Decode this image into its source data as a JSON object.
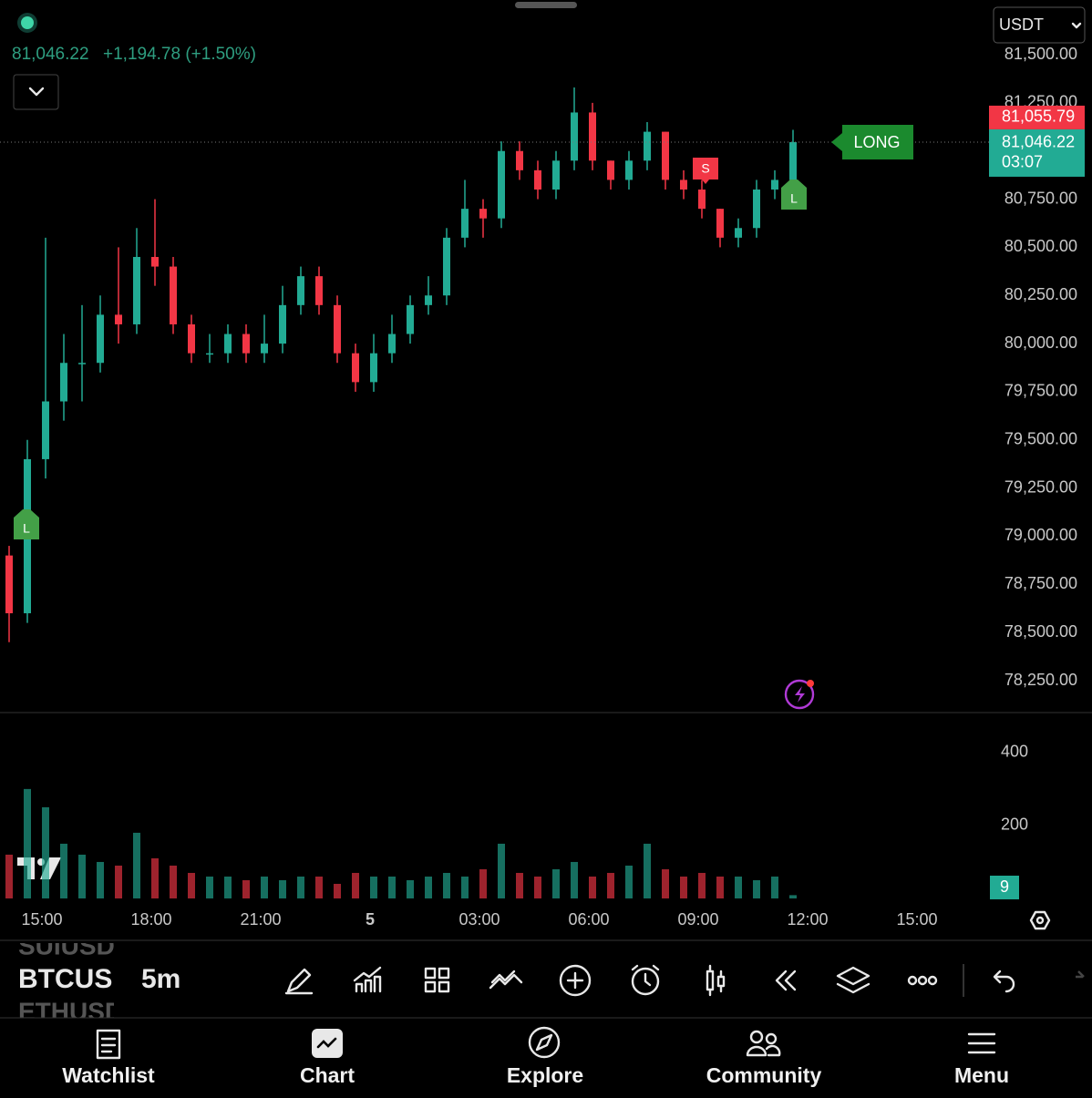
{
  "header": {
    "price": "81,046.22",
    "change": "+1,194.78 (+1.50%)",
    "currency": "USDT"
  },
  "chart_data": {
    "type": "candlestick",
    "up_color": "#22ab94",
    "down_color": "#f23645",
    "open": [
      78900,
      78600,
      79400,
      79700,
      79900,
      79900,
      80150,
      80100,
      80450,
      80400,
      80100,
      79950,
      79950,
      80050,
      79950,
      80000,
      80200,
      80350,
      80200,
      79950,
      79800,
      79950,
      80050,
      80200,
      80250,
      80550,
      80700,
      80650,
      81000,
      80900,
      80800,
      80950,
      81200,
      80950,
      80850,
      80950,
      81100,
      80850,
      80800,
      80700,
      80550,
      80600,
      80800,
      80850
    ],
    "high": [
      78950,
      79500,
      80550,
      80050,
      80200,
      80250,
      80500,
      80600,
      80750,
      80450,
      80150,
      80050,
      80100,
      80100,
      80150,
      80300,
      80400,
      80400,
      80250,
      80000,
      80050,
      80150,
      80250,
      80350,
      80600,
      80850,
      80750,
      81050,
      81050,
      80950,
      81000,
      81330,
      81250,
      80950,
      81000,
      81150,
      81100,
      80900,
      80850,
      80700,
      80650,
      80850,
      80900,
      81110
    ],
    "low": [
      78450,
      78550,
      79300,
      79600,
      79700,
      79850,
      80000,
      80050,
      80300,
      80050,
      79900,
      79900,
      79900,
      79900,
      79900,
      79950,
      80150,
      80150,
      79900,
      79750,
      79750,
      79900,
      80000,
      80150,
      80200,
      80500,
      80550,
      80600,
      80850,
      80750,
      80750,
      80900,
      80900,
      80800,
      80800,
      80900,
      80800,
      80750,
      80650,
      80500,
      80500,
      80550,
      80750,
      80800
    ],
    "close": [
      78600,
      79400,
      79700,
      79900,
      79900,
      80150,
      80100,
      80450,
      80400,
      80100,
      79950,
      79950,
      80050,
      79950,
      80000,
      80200,
      80350,
      80200,
      79950,
      79800,
      79950,
      80050,
      80200,
      80250,
      80550,
      80700,
      80650,
      81000,
      80900,
      80800,
      80950,
      81200,
      80950,
      80850,
      80950,
      81100,
      80850,
      80800,
      80700,
      80550,
      80600,
      80800,
      80850,
      81046.22
    ],
    "ylim": [
      78094,
      81784
    ],
    "yticks": [
      {
        "value": 81500,
        "label": "81,500.00"
      },
      {
        "value": 81250,
        "label": "81,250.00"
      },
      {
        "value": 81000,
        "label": "81,000.00"
      },
      {
        "value": 80750,
        "label": "80,750.00"
      },
      {
        "value": 80500,
        "label": "80,500.00"
      },
      {
        "value": 80250,
        "label": "80,250.00"
      },
      {
        "value": 80000,
        "label": "80,000.00"
      },
      {
        "value": 79750,
        "label": "79,750.00"
      },
      {
        "value": 79500,
        "label": "79,500.00"
      },
      {
        "value": 79250,
        "label": "79,250.00"
      },
      {
        "value": 79000,
        "label": "79,000.00"
      },
      {
        "value": 78750,
        "label": "78,750.00"
      },
      {
        "value": 78500,
        "label": "78,500.00"
      },
      {
        "value": 78250,
        "label": "78,250.00"
      }
    ],
    "price_tags": [
      "81,055.79",
      "81,046.22",
      "03:07"
    ],
    "signals": [
      "L",
      "S",
      "L",
      "LONG"
    ],
    "time_labels": [
      "15:00",
      "18:00",
      "21:00",
      "5",
      "03:00",
      "06:00",
      "09:00",
      "12:00",
      "15:00"
    ],
    "volume": {
      "values": [
        120,
        300,
        250,
        150,
        120,
        100,
        90,
        180,
        110,
        90,
        70,
        60,
        60,
        50,
        60,
        50,
        60,
        60,
        40,
        70,
        60,
        60,
        50,
        60,
        70,
        60,
        80,
        150,
        70,
        60,
        80,
        100,
        60,
        70,
        90,
        150,
        80,
        60,
        70,
        60,
        60,
        50,
        60,
        9
      ],
      "ylim": [
        0,
        502
      ],
      "yticks": [
        200,
        400
      ]
    }
  },
  "toolbar": {
    "symbol": "BTCUSD",
    "prev_symbol": "SUIUSD",
    "next_symbol": "ETHUSD",
    "interval": "5m"
  },
  "nav": [
    "Watchlist",
    "Chart",
    "Explore",
    "Community",
    "Menu"
  ]
}
